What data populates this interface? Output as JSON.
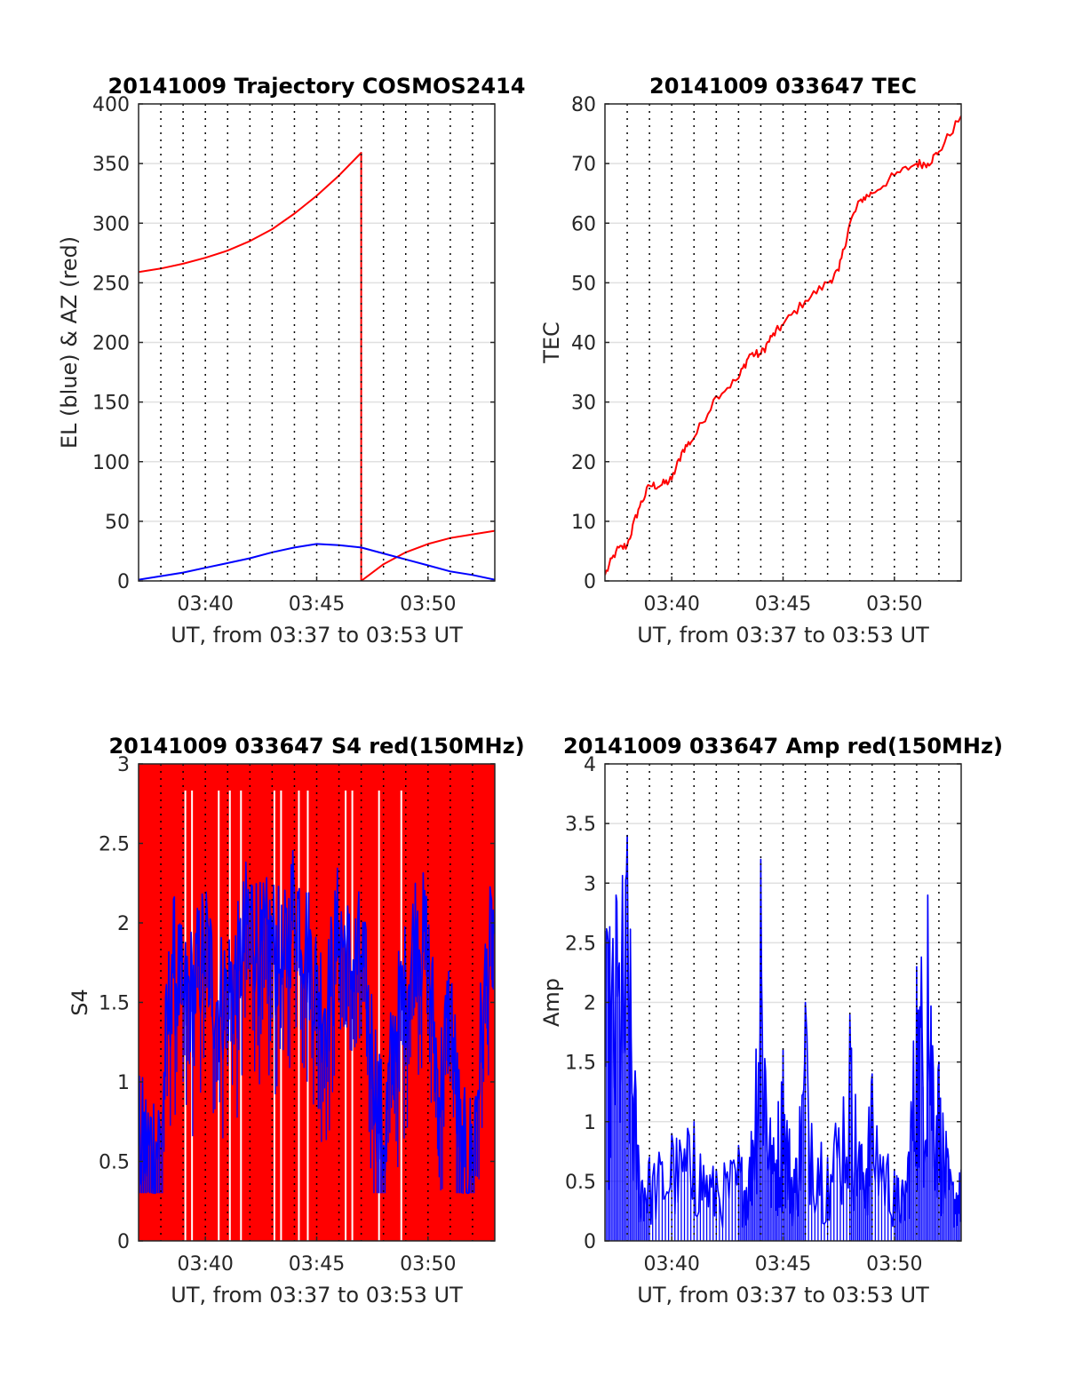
{
  "figure": {
    "x_label": "UT, from 03:37 to 03:53 UT",
    "x_tick_labels": [
      "03:40",
      "03:45",
      "03:50"
    ],
    "x_ticks_min": [
      40,
      45,
      50
    ],
    "x_range_min": [
      37,
      53
    ],
    "dotted_grid_min": [
      38,
      39,
      40,
      41,
      42,
      43,
      44,
      45,
      46,
      47,
      48,
      49,
      50,
      51,
      52
    ],
    "colors": {
      "red": "#ff0000",
      "blue": "#0000ff",
      "axis": "#262626",
      "grid": "#e0e0e0",
      "vgrid": "#000000"
    }
  },
  "chart_data": [
    {
      "id": "trajectory",
      "type": "line",
      "title": "20141009 Trajectory COSMOS2414",
      "xlabel": "UT, from 03:37 to 03:53 UT",
      "ylabel": "EL (blue) & AZ (red)",
      "xlim": [
        "03:37",
        "03:53"
      ],
      "ylim": [
        0,
        400
      ],
      "yticks": [
        0,
        50,
        100,
        150,
        200,
        250,
        300,
        350,
        400
      ],
      "series": [
        {
          "color": "red",
          "x": [
            "03:37",
            "03:38",
            "03:39",
            "03:40",
            "03:41",
            "03:42",
            "03:43",
            "03:44",
            "03:45",
            "03:46",
            "03:47",
            "03:47",
            "03:48",
            "03:49",
            "03:50",
            "03:51",
            "03:52",
            "03:53"
          ],
          "y": [
            259,
            262,
            266,
            271,
            277,
            285,
            295,
            308,
            323,
            340,
            359,
            0,
            14,
            24,
            31,
            36,
            39,
            42
          ]
        },
        {
          "color": "blue",
          "x": [
            "03:37",
            "03:38",
            "03:39",
            "03:40",
            "03:41",
            "03:42",
            "03:43",
            "03:44",
            "03:45",
            "03:46",
            "03:47",
            "03:48",
            "03:49",
            "03:50",
            "03:51",
            "03:52",
            "03:53"
          ],
          "y": [
            1,
            4,
            7,
            11,
            15,
            19,
            24,
            28,
            31,
            30,
            28,
            23,
            18,
            13,
            8,
            5,
            1
          ]
        }
      ]
    },
    {
      "id": "tec",
      "type": "line",
      "title": "20141009 033647 TEC",
      "xlabel": "UT, from 03:37 to 03:53 UT",
      "ylabel": "TEC",
      "xlim": [
        "03:37",
        "03:53"
      ],
      "ylim": [
        0,
        80
      ],
      "yticks": [
        0,
        10,
        20,
        30,
        40,
        50,
        60,
        70,
        80
      ],
      "series": [
        {
          "color": "red",
          "x": [
            "03:37",
            "03:37:30",
            "03:38",
            "03:38:30",
            "03:39",
            "03:39:30",
            "03:40",
            "03:40:30",
            "03:41",
            "03:42",
            "03:43",
            "03:43:30",
            "03:44",
            "03:44:30",
            "03:45",
            "03:46",
            "03:47",
            "03:47:30",
            "03:48",
            "03:48:30",
            "03:49",
            "03:50",
            "03:51",
            "03:51:30",
            "03:52",
            "03:53"
          ],
          "y": [
            1,
            5,
            6,
            12,
            16,
            16,
            17,
            22,
            24,
            31,
            34,
            38,
            38,
            41,
            43,
            47,
            50,
            52,
            60,
            64,
            65,
            68,
            70,
            70,
            72,
            78
          ]
        }
      ]
    },
    {
      "id": "s4",
      "type": "line",
      "title": "20141009 033647 S4 red(150MHz)",
      "xlabel": "UT, from 03:37 to 03:53 UT",
      "ylabel": "S4",
      "xlim": [
        "03:37",
        "03:53"
      ],
      "ylim": [
        0,
        3
      ],
      "yticks": [
        0,
        0.5,
        1,
        1.5,
        2,
        2.5,
        3
      ],
      "series": [
        {
          "color": "red",
          "note_type": "fill",
          "x": [
            "03:37",
            "03:53"
          ],
          "y": [
            3,
            3
          ]
        },
        {
          "color": "blue",
          "x": [
            "03:37",
            "03:37:30",
            "03:38",
            "03:38:30",
            "03:39",
            "03:39:30",
            "03:40",
            "03:40:30",
            "03:41",
            "03:41:30",
            "03:42",
            "03:42:30",
            "03:43",
            "03:43:30",
            "03:44",
            "03:44:30",
            "03:45",
            "03:45:30",
            "03:46",
            "03:46:30",
            "03:47",
            "03:47:30",
            "03:48",
            "03:48:30",
            "03:49",
            "03:49:30",
            "03:50",
            "03:50:30",
            "03:51",
            "03:51:30",
            "03:52",
            "03:52:30",
            "03:53"
          ],
          "y": [
            0.6,
            0.6,
            0.65,
            1.8,
            1.5,
            1.6,
            1.9,
            1.5,
            1.6,
            1.7,
            2.1,
            1.8,
            1.9,
            1.7,
            2.2,
            1.9,
            1.6,
            1.5,
            2.0,
            1.7,
            1.8,
            1.2,
            0.6,
            1.3,
            1.6,
            2.0,
            1.8,
            0.9,
            1.5,
            0.5,
            0.55,
            1.5,
            2.0
          ]
        }
      ]
    },
    {
      "id": "amp",
      "type": "line",
      "title": "20141009 033647 Amp red(150MHz)",
      "xlabel": "UT, from 03:37 to 03:53 UT",
      "ylabel": "Amp",
      "xlim": [
        "03:37",
        "03:53"
      ],
      "ylim": [
        0,
        4
      ],
      "yticks": [
        0,
        0.5,
        1,
        1.5,
        2,
        2.5,
        3,
        3.5,
        4
      ],
      "series": [
        {
          "color": "blue",
          "x": [
            "03:37",
            "03:37:30",
            "03:38",
            "03:38:30",
            "03:39",
            "03:40",
            "03:41",
            "03:42",
            "03:43",
            "03:43:30",
            "03:44",
            "03:44:30",
            "03:45",
            "03:45:30",
            "03:46",
            "03:47",
            "03:48",
            "03:48:30",
            "03:49",
            "03:50",
            "03:50:30",
            "03:51",
            "03:51:30",
            "03:52",
            "03:52:30",
            "03:53"
          ],
          "y": [
            2.6,
            2.9,
            3.4,
            0.8,
            0.7,
            0.9,
            1.0,
            0.6,
            0.8,
            0.7,
            3.2,
            0.8,
            1.6,
            0.6,
            2.0,
            0.7,
            1.9,
            0.8,
            1.4,
            0.6,
            0.5,
            2.3,
            2.9,
            1.5,
            0.6,
            0.6
          ]
        }
      ]
    }
  ]
}
